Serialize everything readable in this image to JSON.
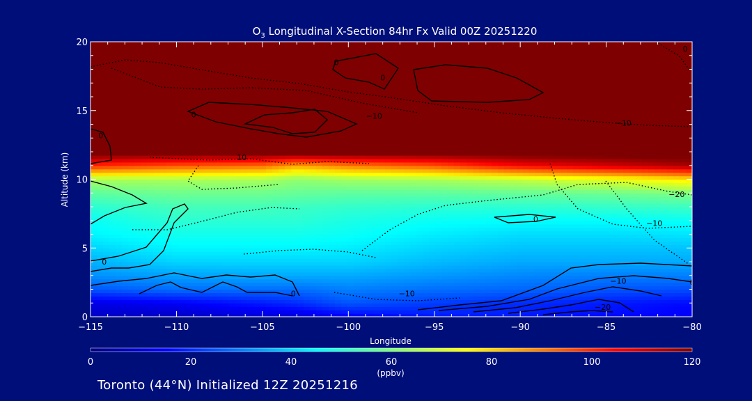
{
  "title_parts": {
    "prefix": "O",
    "subscript": "3",
    "suffix": " Longitudinal X-Section 84hr  Fx Valid 00Z 20251220"
  },
  "footer_text": "Toronto (44°N) Initialized 12Z 20251216",
  "colors": {
    "background": "#000e7a",
    "text": "#ffffff",
    "colormap": [
      "#00007f",
      "#0000ff",
      "#007fff",
      "#00ffff",
      "#7fff7f",
      "#ffff00",
      "#ff7f00",
      "#ff0000",
      "#7f0000"
    ]
  },
  "chart_data": {
    "type": "heatmap",
    "title": "O3 Longitudinal X-Section 84hr  Fx Valid 00Z 20251220",
    "xlabel": "Longitude",
    "ylabel": "Altitude (km)",
    "xlim": [
      -115,
      -80
    ],
    "ylim": [
      0,
      20
    ],
    "x_ticks": [
      -115,
      -110,
      -105,
      -100,
      -95,
      -90,
      -85,
      -80
    ],
    "x_tick_labels": [
      "−115",
      "−110",
      "−105",
      "−100",
      "−95",
      "−90",
      "−85",
      "−80"
    ],
    "y_ticks": [
      0,
      5,
      10,
      15,
      20
    ],
    "y_tick_labels": [
      "0",
      "5",
      "10",
      "15",
      "20"
    ],
    "colorbar": {
      "min": 0,
      "max": 120,
      "ticks": [
        0,
        20,
        40,
        60,
        80,
        100,
        120
      ],
      "tick_labels": [
        "0",
        "20",
        "40",
        "60",
        "80",
        "100",
        "120"
      ],
      "unit_label": "(ppbv)"
    },
    "x": [
      -115,
      -110,
      -105,
      -103,
      -100,
      -95,
      -90,
      -85,
      -80
    ],
    "y": [
      0,
      1,
      2,
      3,
      4,
      5,
      6,
      7,
      8,
      9,
      10,
      11,
      12,
      20
    ],
    "z": [
      [
        8,
        8,
        10,
        10,
        14,
        18,
        18,
        16,
        14
      ],
      [
        12,
        14,
        18,
        20,
        25,
        22,
        20,
        18,
        16
      ],
      [
        25,
        28,
        28,
        28,
        30,
        28,
        27,
        25,
        24
      ],
      [
        32,
        34,
        35,
        35,
        35,
        33,
        31,
        30,
        30
      ],
      [
        36,
        40,
        40,
        40,
        40,
        37,
        35,
        35,
        35
      ],
      [
        40,
        44,
        44,
        44,
        43,
        40,
        38,
        38,
        38
      ],
      [
        44,
        47,
        47,
        47,
        46,
        43,
        41,
        41,
        42
      ],
      [
        46,
        50,
        50,
        50,
        48,
        46,
        45,
        45,
        46
      ],
      [
        50,
        53,
        53,
        52,
        51,
        50,
        50,
        51,
        52
      ],
      [
        56,
        58,
        58,
        57,
        56,
        56,
        57,
        58,
        60
      ],
      [
        65,
        65,
        65,
        62,
        64,
        65,
        68,
        72,
        78
      ],
      [
        100,
        95,
        92,
        85,
        90,
        95,
        105,
        110,
        115
      ],
      [
        125,
        125,
        125,
        125,
        125,
        125,
        125,
        125,
        125
      ],
      [
        125,
        125,
        125,
        125,
        125,
        125,
        125,
        125,
        125
      ]
    ],
    "contour_labels": [
      {
        "text": "0",
        "lon": -100.7,
        "alt": 18.3
      },
      {
        "text": "0",
        "lon": -98.0,
        "alt": 17.2
      },
      {
        "text": "0",
        "lon": -80.4,
        "alt": 19.3
      },
      {
        "text": "0",
        "lon": -109.0,
        "alt": 14.5
      },
      {
        "text": "0",
        "lon": -114.4,
        "alt": 13.0
      },
      {
        "text": "−10",
        "lon": -98.5,
        "alt": 14.4
      },
      {
        "text": "−10",
        "lon": -84.0,
        "alt": 13.9
      },
      {
        "text": "10",
        "lon": -106.2,
        "alt": 11.4
      },
      {
        "text": "−20",
        "lon": -80.9,
        "alt": 8.7
      },
      {
        "text": "−10",
        "lon": -82.2,
        "alt": 6.6
      },
      {
        "text": "0",
        "lon": -89.1,
        "alt": 6.9
      },
      {
        "text": "0",
        "lon": -114.2,
        "alt": 3.8
      },
      {
        "text": "0",
        "lon": -103.2,
        "alt": 1.5
      },
      {
        "text": "−10",
        "lon": -96.6,
        "alt": 1.5
      },
      {
        "text": "−10",
        "lon": -84.3,
        "alt": 2.4
      },
      {
        "text": "0",
        "lon": -80.0,
        "alt": 2.3
      },
      {
        "text": "−20",
        "lon": -85.2,
        "alt": 0.5
      }
    ]
  }
}
